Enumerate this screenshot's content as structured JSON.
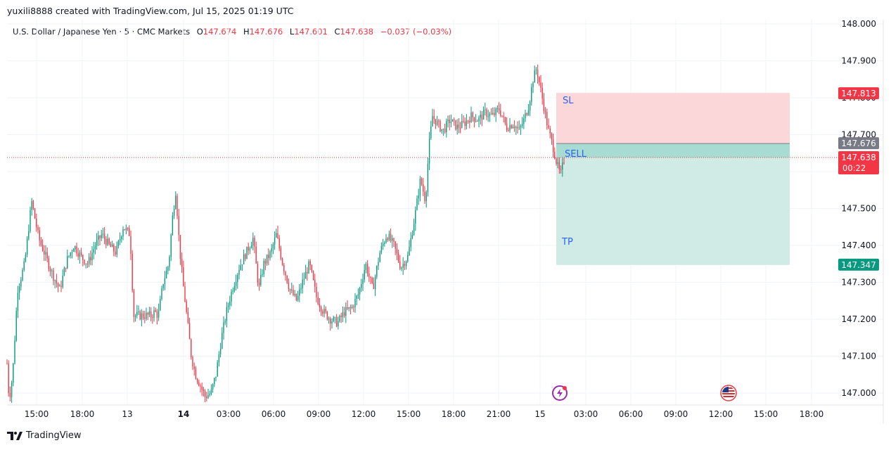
{
  "header": {
    "author_line": "yuxili8888 created with TradingView.com, Jul 15, 2025 01:19 UTC"
  },
  "legend": {
    "symbol": "U.S. Dollar / Japanese Yen · 5 · CMC Markets",
    "open_label": "O",
    "open": "147.674",
    "high_label": "H",
    "high": "147.676",
    "low_label": "L",
    "low": "147.601",
    "close_label": "C",
    "close": "147.638",
    "change": "−0.037 (−0.03%)"
  },
  "price_axis": {
    "ticks": [
      "148.000",
      "147.900",
      "147.800",
      "147.700",
      "147.600",
      "147.500",
      "147.400",
      "147.300",
      "147.200",
      "147.100",
      "147.000"
    ],
    "tick_values": [
      148.0,
      147.9,
      147.8,
      147.7,
      147.6,
      147.5,
      147.4,
      147.3,
      147.2,
      147.1,
      147.0
    ]
  },
  "time_axis": {
    "labels": [
      "15:00",
      "18:00",
      "13",
      "14",
      "03:00",
      "06:00",
      "09:00",
      "12:00",
      "15:00",
      "18:00",
      "21:00",
      "15",
      "03:00",
      "06:00",
      "09:00",
      "12:00",
      "15:00",
      "18:00"
    ],
    "bold": [
      "14"
    ]
  },
  "price_badges": {
    "stop_loss": {
      "value": "147.813",
      "color": "#f23645"
    },
    "open_price": {
      "value": "147.676",
      "color": "#787b86"
    },
    "last_price": {
      "value": "147.638",
      "countdown": "00:22",
      "color": "#f23645"
    },
    "take_profit": {
      "value": "147.347",
      "color": "#089981"
    }
  },
  "position": {
    "sl_label": "SL",
    "entry_label": "SELL",
    "tp_label": "TP",
    "entry_price": 147.676,
    "stop_loss": 147.813,
    "take_profit": 147.347
  },
  "colors": {
    "up": "#089981",
    "down": "#f23645",
    "sl_zone": "#fbd7da",
    "tp_zone": "#d0ebe6",
    "entry_zone": "#a8dcd3",
    "label_blue": "#2962ff"
  },
  "events": [
    {
      "icon": "lightning-event-icon"
    },
    {
      "icon": "us-flag-event-icon"
    }
  ],
  "chart_data": {
    "type": "candlestick",
    "series": [
      {
        "name": "USDJPY 5m",
        "path": [
          [
            0,
            147.08
          ],
          [
            3,
            146.98
          ],
          [
            8,
            147.05
          ],
          [
            15,
            147.28
          ],
          [
            25,
            147.35
          ],
          [
            35,
            147.52
          ],
          [
            45,
            147.42
          ],
          [
            55,
            147.37
          ],
          [
            65,
            147.32
          ],
          [
            75,
            147.28
          ],
          [
            85,
            147.36
          ],
          [
            95,
            147.4
          ],
          [
            105,
            147.37
          ],
          [
            115,
            147.35
          ],
          [
            125,
            147.4
          ],
          [
            135,
            147.43
          ],
          [
            145,
            147.4
          ],
          [
            155,
            147.38
          ],
          [
            165,
            147.45
          ],
          [
            175,
            147.43
          ],
          [
            180,
            147.21
          ],
          [
            195,
            147.21
          ],
          [
            205,
            147.21
          ],
          [
            210,
            147.22
          ],
          [
            215,
            147.21
          ],
          [
            222,
            147.3
          ],
          [
            230,
            147.35
          ],
          [
            235,
            147.47
          ],
          [
            240,
            147.55
          ],
          [
            245,
            147.4
          ],
          [
            250,
            147.3
          ],
          [
            255,
            147.22
          ],
          [
            262,
            147.1
          ],
          [
            268,
            147.05
          ],
          [
            275,
            147.02
          ],
          [
            282,
            146.99
          ],
          [
            290,
            147.0
          ],
          [
            297,
            147.05
          ],
          [
            305,
            147.15
          ],
          [
            312,
            147.22
          ],
          [
            320,
            147.28
          ],
          [
            330,
            147.34
          ],
          [
            340,
            147.38
          ],
          [
            350,
            147.42
          ],
          [
            358,
            147.28
          ],
          [
            365,
            147.35
          ],
          [
            375,
            147.38
          ],
          [
            383,
            147.43
          ],
          [
            392,
            147.35
          ],
          [
            402,
            147.28
          ],
          [
            412,
            147.25
          ],
          [
            420,
            147.3
          ],
          [
            430,
            147.35
          ],
          [
            440,
            147.26
          ],
          [
            450,
            147.22
          ],
          [
            460,
            147.2
          ],
          [
            470,
            147.19
          ],
          [
            480,
            147.22
          ],
          [
            490,
            147.23
          ],
          [
            500,
            147.27
          ],
          [
            510,
            147.35
          ],
          [
            520,
            147.28
          ],
          [
            530,
            147.38
          ],
          [
            540,
            147.43
          ],
          [
            550,
            147.4
          ],
          [
            560,
            147.34
          ],
          [
            570,
            147.37
          ],
          [
            580,
            147.48
          ],
          [
            588,
            147.58
          ],
          [
            595,
            147.52
          ],
          [
            600,
            147.67
          ],
          [
            605,
            147.75
          ],
          [
            612,
            147.73
          ],
          [
            620,
            147.71
          ],
          [
            630,
            147.74
          ],
          [
            640,
            147.72
          ],
          [
            650,
            147.73
          ],
          [
            660,
            147.75
          ],
          [
            670,
            147.74
          ],
          [
            680,
            147.76
          ],
          [
            690,
            147.75
          ],
          [
            700,
            147.77
          ],
          [
            710,
            147.72
          ],
          [
            720,
            147.73
          ],
          [
            728,
            147.71
          ],
          [
            735,
            147.74
          ],
          [
            742,
            147.78
          ],
          [
            748,
            147.85
          ],
          [
            753,
            147.88
          ],
          [
            758,
            147.83
          ],
          [
            764,
            147.77
          ],
          [
            770,
            147.71
          ],
          [
            776,
            147.67
          ],
          [
            782,
            147.62
          ],
          [
            787,
            147.59
          ],
          [
            793,
            147.64
          ]
        ]
      }
    ],
    "ylim": [
      146.97,
      148.03
    ],
    "last_close": 147.638
  }
}
